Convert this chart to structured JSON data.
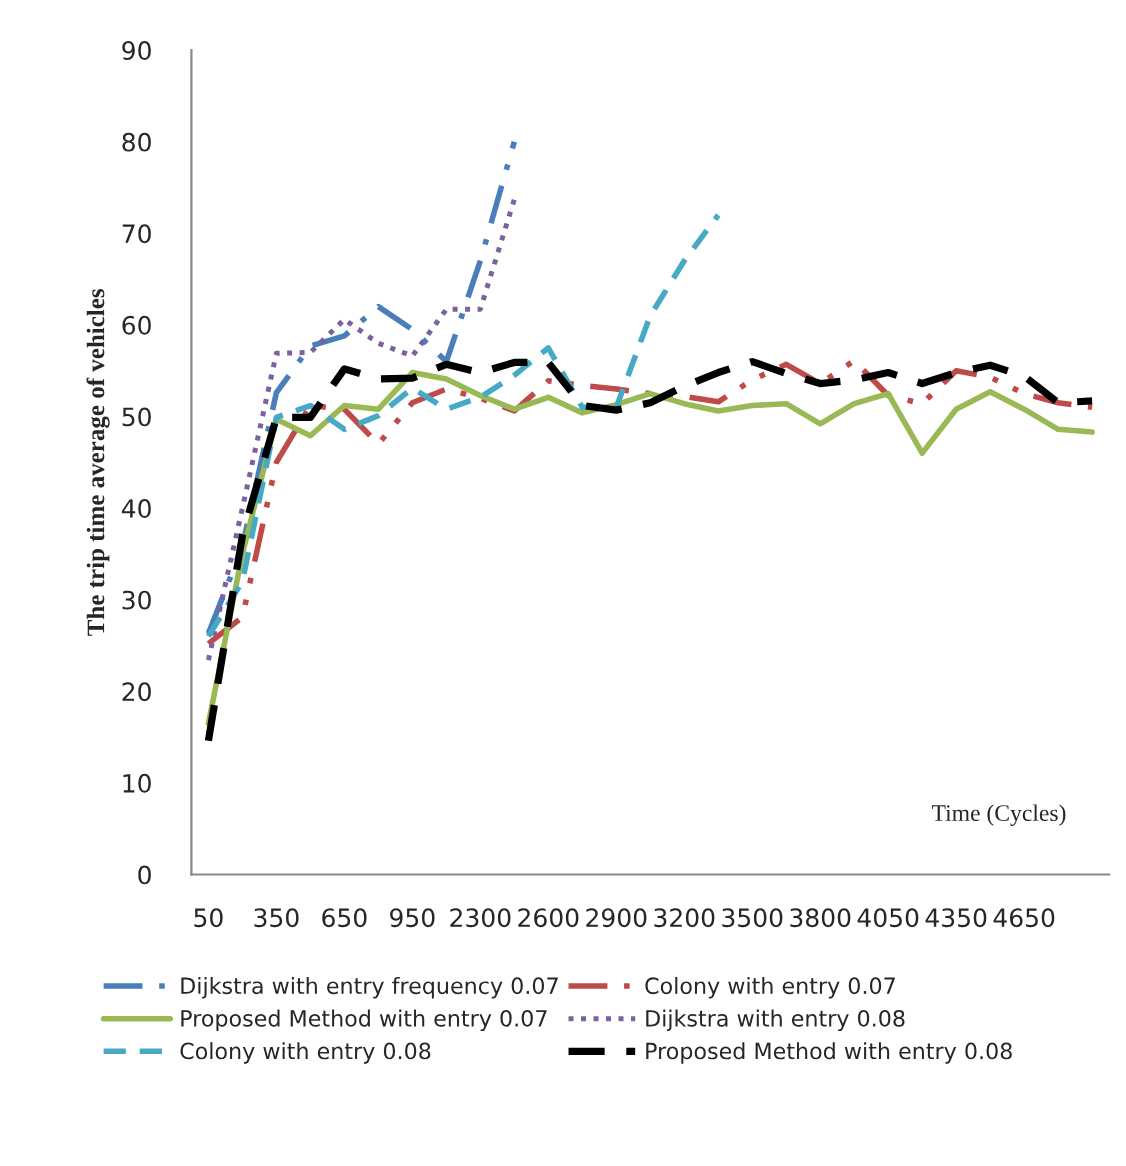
{
  "chart_data": {
    "type": "line",
    "ylabel": "The trip time average of vehicles",
    "xlabel": "Time (Cycles)",
    "categories": [
      "50",
      null,
      "350",
      null,
      "650",
      null,
      "950",
      null,
      "2300",
      null,
      "2600",
      null,
      "2900",
      null,
      "3200",
      null,
      "3500",
      null,
      "3800",
      null,
      "4050",
      null,
      "4350",
      null,
      "4650",
      null,
      null
    ],
    "ylim": [
      0,
      90
    ],
    "yticks": [
      0,
      10,
      20,
      30,
      40,
      50,
      60,
      70,
      80,
      90
    ],
    "grid": false,
    "legend": "bottom",
    "marker": "none",
    "series": [
      {
        "name": "Dijkstra with entry frequency 0.07",
        "color": "#4a7ebb",
        "line_style": "dashdot",
        "values": [
          26.3,
          35.8,
          52.6,
          57.7,
          58.8,
          62,
          59.5,
          56,
          67,
          80,
          null,
          null,
          null,
          null,
          null,
          null,
          null,
          null,
          null,
          null,
          null,
          null,
          null,
          null,
          null,
          null,
          null
        ]
      },
      {
        "name": "Colony with entry 0.07",
        "color": "#be4b48",
        "line_style": "dashdotdot",
        "values": [
          25.2,
          28.1,
          45,
          51.2,
          50.8,
          47,
          51.5,
          53,
          52,
          50.6,
          53.9,
          53.4,
          53,
          52.5,
          52.2,
          51.6,
          54,
          55.7,
          53.6,
          56.1,
          52.3,
          51.4,
          55,
          54.3,
          52.5,
          51.5,
          51
        ]
      },
      {
        "name": "Proposed Method with entry 0.07",
        "color": "#98b954",
        "line_style": "solid",
        "values": [
          16.5,
          35,
          49.7,
          47.9,
          51.2,
          50.8,
          54.8,
          54.1,
          52.3,
          50.8,
          52.1,
          50.4,
          51.3,
          52.5,
          51.4,
          50.6,
          51.2,
          51.4,
          49.2,
          51.4,
          52.5,
          46,
          50.8,
          52.7,
          50.8,
          48.6,
          48.3
        ]
      },
      {
        "name": "Dijkstra with entry 0.08",
        "color": "#7d60a0",
        "line_style": "dotted",
        "values": [
          23.4,
          40,
          56.9,
          57,
          60.6,
          58,
          56.6,
          61.7,
          61.7,
          73.7,
          null,
          null,
          null,
          null,
          null,
          null,
          null,
          null,
          null,
          null,
          null,
          null,
          null,
          null,
          null,
          null,
          null
        ]
      },
      {
        "name": "Colony with entry 0.08",
        "color": "#46aac5",
        "line_style": "dashed",
        "values": [
          26,
          32,
          49.9,
          51.2,
          48.6,
          50.1,
          53.1,
          50.8,
          52.1,
          54.5,
          57.5,
          51,
          51,
          61,
          67,
          72,
          null,
          null,
          null,
          null,
          null,
          null,
          null,
          null,
          null,
          null,
          null
        ]
      },
      {
        "name": "Proposed Method with entry 0.08",
        "color": "#000000",
        "line_style": "longdashed",
        "values": [
          14.6,
          37,
          49.9,
          49.9,
          55.2,
          54.1,
          54.2,
          55.7,
          54.8,
          55.9,
          55.9,
          51.2,
          50.7,
          51.5,
          53.3,
          54.8,
          56,
          54.7,
          53.6,
          54,
          54.8,
          53.6,
          54.8,
          55.6,
          54.4,
          51.5,
          51.7
        ]
      }
    ]
  }
}
